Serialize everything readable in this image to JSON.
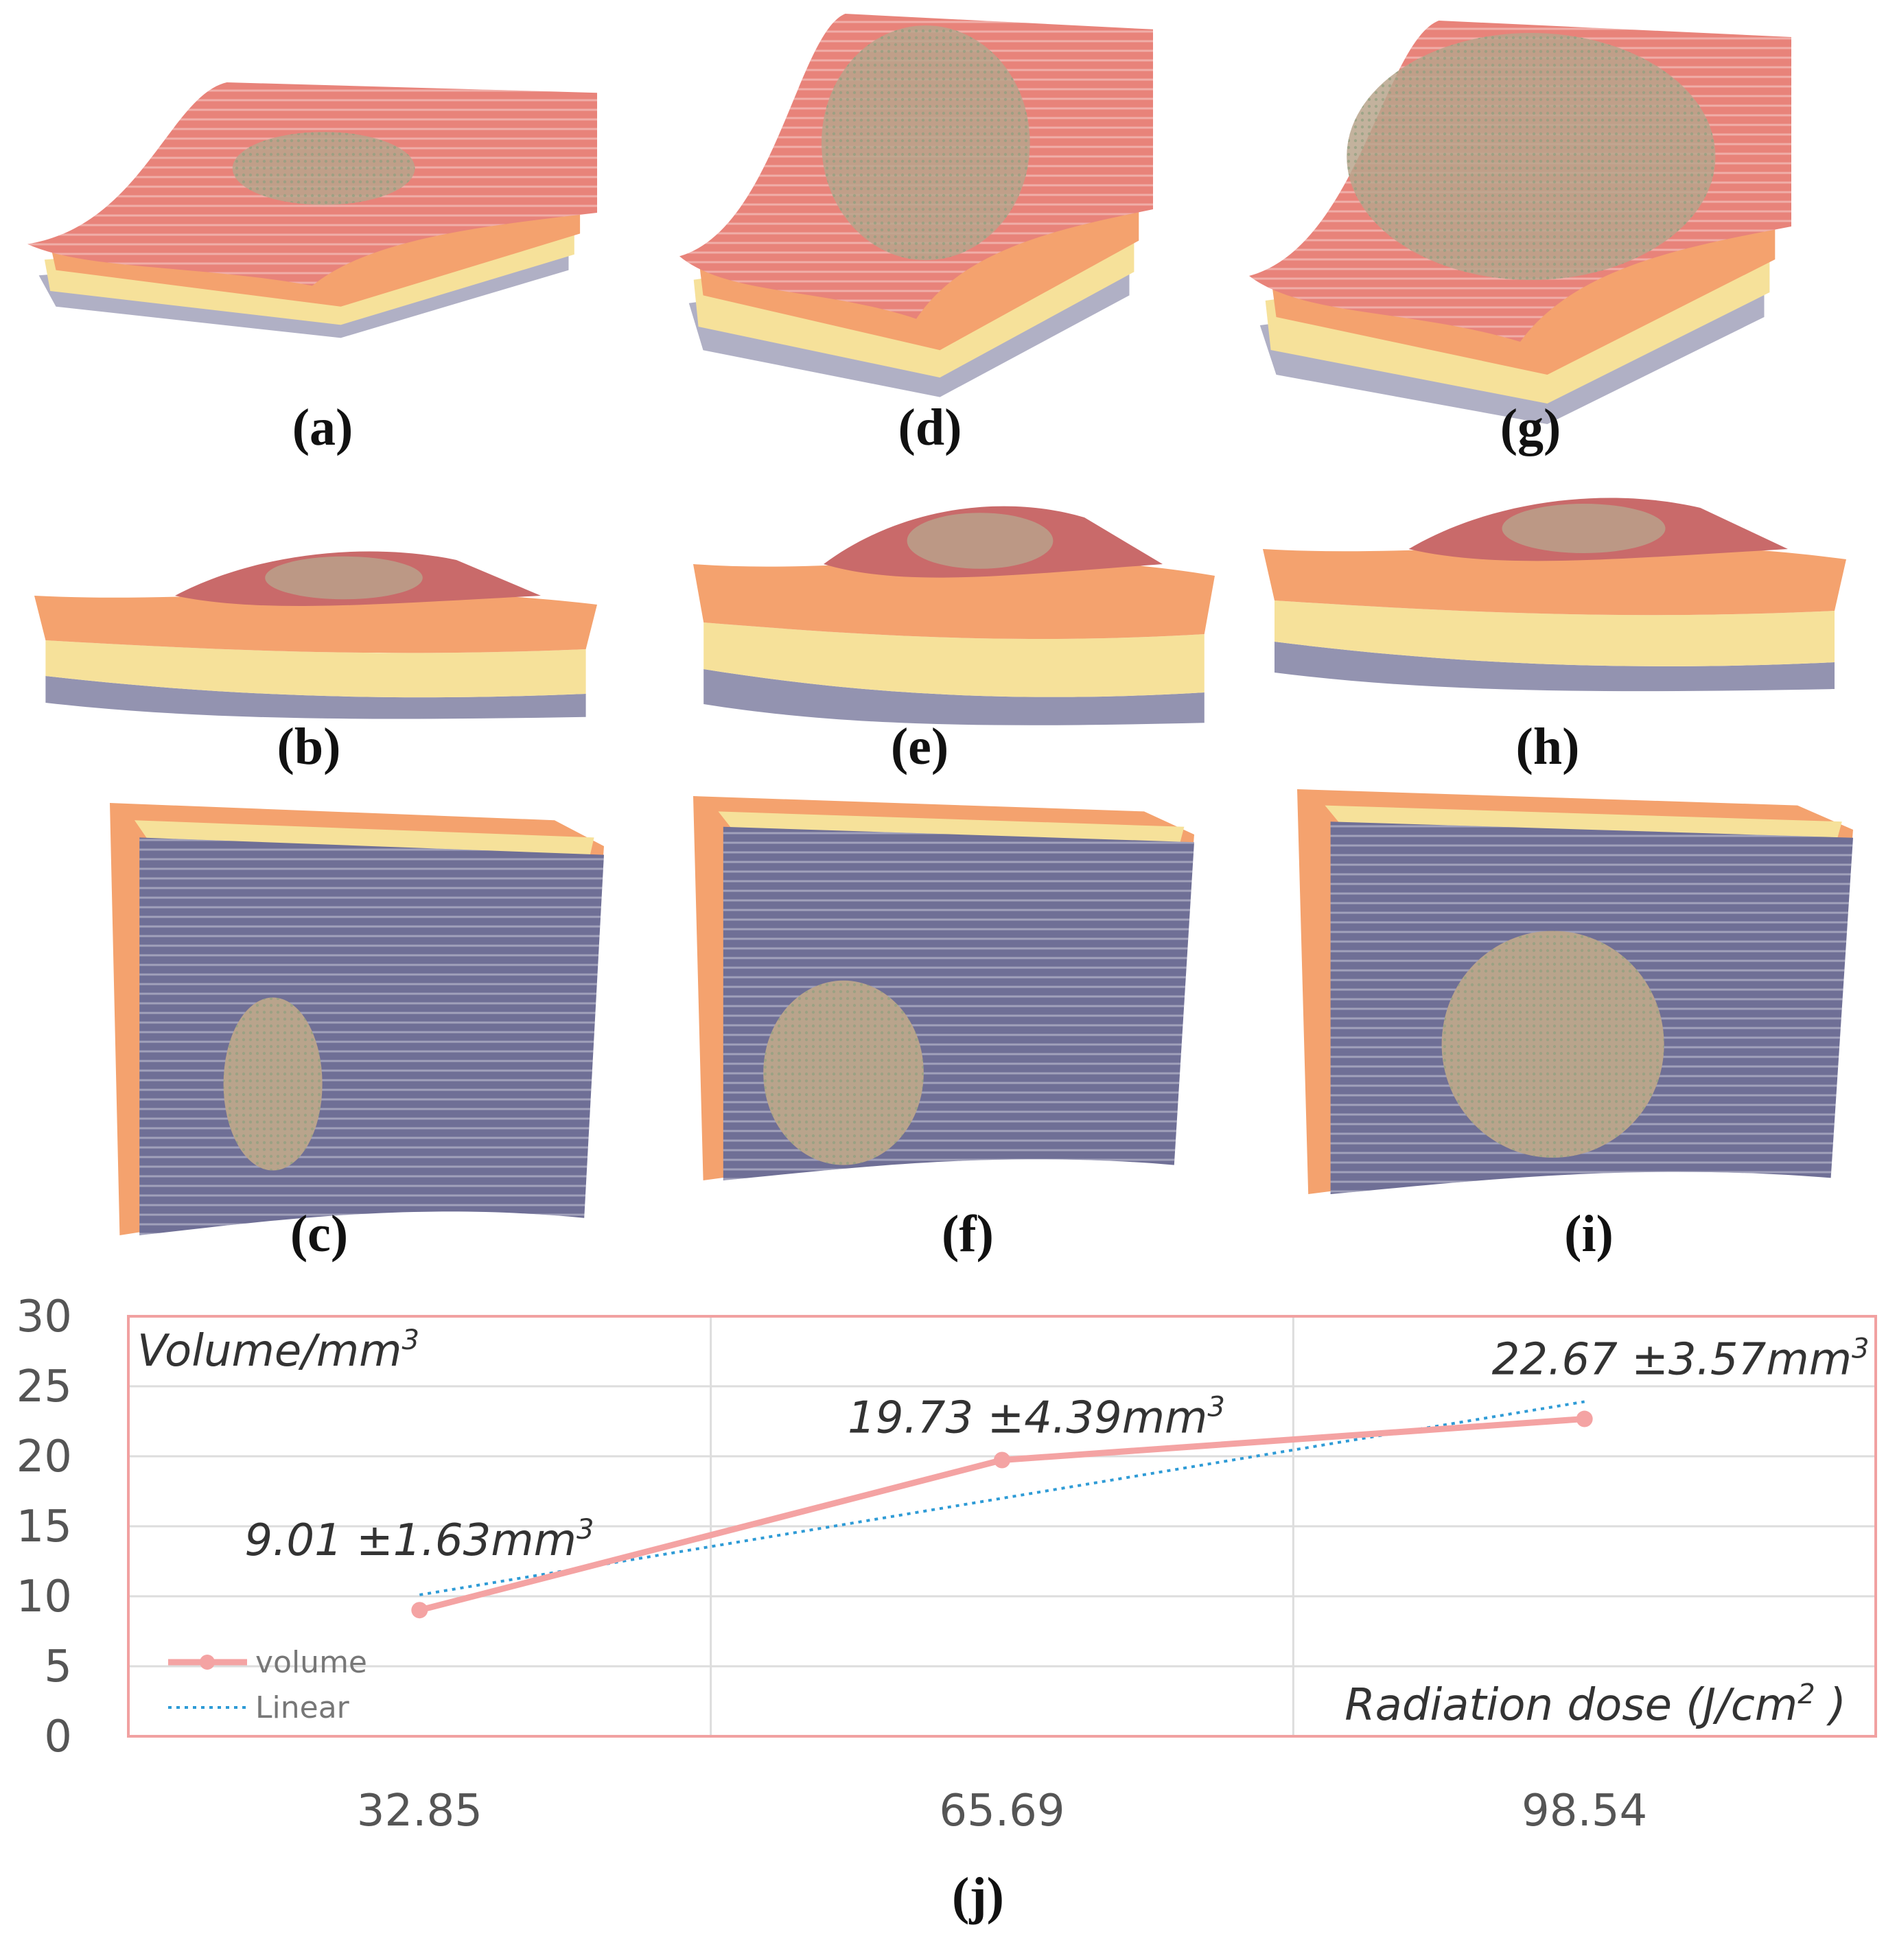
{
  "panels": [
    {
      "id": "a",
      "label": "(a)",
      "view": "oblique"
    },
    {
      "id": "b",
      "label": "(b)",
      "view": "side"
    },
    {
      "id": "c",
      "label": "(c)",
      "view": "bottom"
    },
    {
      "id": "d",
      "label": "(d)",
      "view": "oblique"
    },
    {
      "id": "e",
      "label": "(e)",
      "view": "side"
    },
    {
      "id": "f",
      "label": "(f)",
      "view": "bottom"
    },
    {
      "id": "g",
      "label": "(g)",
      "view": "oblique"
    },
    {
      "id": "h",
      "label": "(h)",
      "view": "side"
    },
    {
      "id": "i",
      "label": "(i)",
      "view": "bottom"
    }
  ],
  "colors": {
    "tissue_top": "#e8837a",
    "tissue_top_dark": "#c96a6a",
    "tissue_mid": "#f4a26e",
    "tissue_yellow": "#f6e19a",
    "tissue_bottom": "#6f6f96",
    "lesion": "#b9a48c",
    "volume_line": "#f4a3a3",
    "linear_line": "#2e9bd6",
    "frame": "#f1a1a1",
    "grid": "#dddddd"
  },
  "chart_data": {
    "type": "line",
    "panel_label": "(j)",
    "ylabel": "Volume/mm",
    "ylabel_sup": "3",
    "xlabel": "Radiation dose (J/cm",
    "xlabel_sup": "2",
    "xlabel_end": " )",
    "categories": [
      "32.85",
      "65.69",
      "98.54"
    ],
    "ylim": [
      0,
      30
    ],
    "yticks": [
      "0",
      "5",
      "10",
      "15",
      "20",
      "25",
      "30"
    ],
    "series": [
      {
        "name": "volume",
        "values": [
          9.01,
          19.73,
          22.67
        ],
        "style": "solid-markers"
      },
      {
        "name": "Linear",
        "values": [
          10.1,
          17.0,
          23.9
        ],
        "style": "dotted"
      }
    ],
    "annotations": [
      {
        "text": "9.01 ±1.63mm",
        "sup": "3"
      },
      {
        "text": "19.73 ±4.39mm",
        "sup": "3"
      },
      {
        "text": "22.67 ±3.57mm",
        "sup": "3"
      }
    ],
    "legend": [
      "volume",
      "Linear"
    ],
    "legend_position": "bottom-left"
  }
}
